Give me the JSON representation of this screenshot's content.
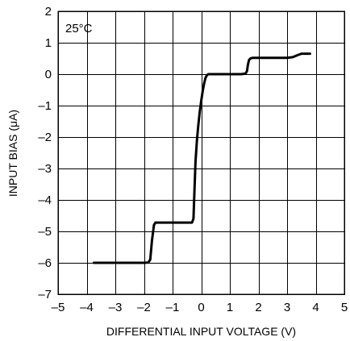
{
  "chart_data": {
    "type": "line",
    "title": "",
    "annotation": "25°C",
    "xlabel": "DIFFERENTIAL INPUT VOLTAGE (V)",
    "ylabel": "INPUT BIAS (μA)",
    "xlim": [
      -5,
      5
    ],
    "ylim": [
      -7,
      2
    ],
    "x_ticks": [
      -5,
      -4,
      -3,
      -2,
      -1,
      0,
      1,
      2,
      3,
      4,
      5
    ],
    "y_ticks": [
      -7,
      -6,
      -5,
      -4,
      -3,
      -2,
      -1,
      0,
      1,
      2
    ],
    "x_tick_labels": [
      "–5",
      "–4",
      "–3",
      "–2",
      "–1",
      "0",
      "1",
      "2",
      "3",
      "4",
      "5"
    ],
    "y_tick_labels": [
      "–7",
      "–6",
      "–5",
      "–4",
      "–3",
      "–2",
      "–1",
      "0",
      "1",
      "2"
    ],
    "grid": true,
    "series": [
      {
        "x": [
          -3.75,
          -3.0,
          -2.0,
          -1.85,
          -1.78,
          -1.72,
          -1.65,
          -1.6,
          -1.0,
          -0.5,
          -0.32,
          -0.27,
          -0.24,
          -0.2,
          -0.15,
          -0.1,
          -0.05,
          0.0,
          0.05,
          0.1,
          0.15,
          0.2,
          0.25,
          0.3,
          0.4,
          0.7,
          1.0,
          1.4,
          1.55,
          1.6,
          1.63,
          1.67,
          1.72,
          1.8,
          2.5,
          3.0,
          3.2,
          3.35,
          3.5,
          3.8
        ],
        "y": [
          -6.0,
          -6.0,
          -6.0,
          -5.99,
          -5.9,
          -5.3,
          -4.8,
          -4.72,
          -4.72,
          -4.72,
          -4.72,
          -4.6,
          -3.8,
          -2.8,
          -2.1,
          -1.6,
          -1.2,
          -0.85,
          -0.55,
          -0.3,
          -0.12,
          -0.03,
          0.0,
          0.0,
          0.0,
          0.0,
          0.0,
          0.0,
          0.02,
          0.1,
          0.3,
          0.45,
          0.5,
          0.52,
          0.52,
          0.52,
          0.54,
          0.6,
          0.65,
          0.65
        ]
      }
    ]
  }
}
